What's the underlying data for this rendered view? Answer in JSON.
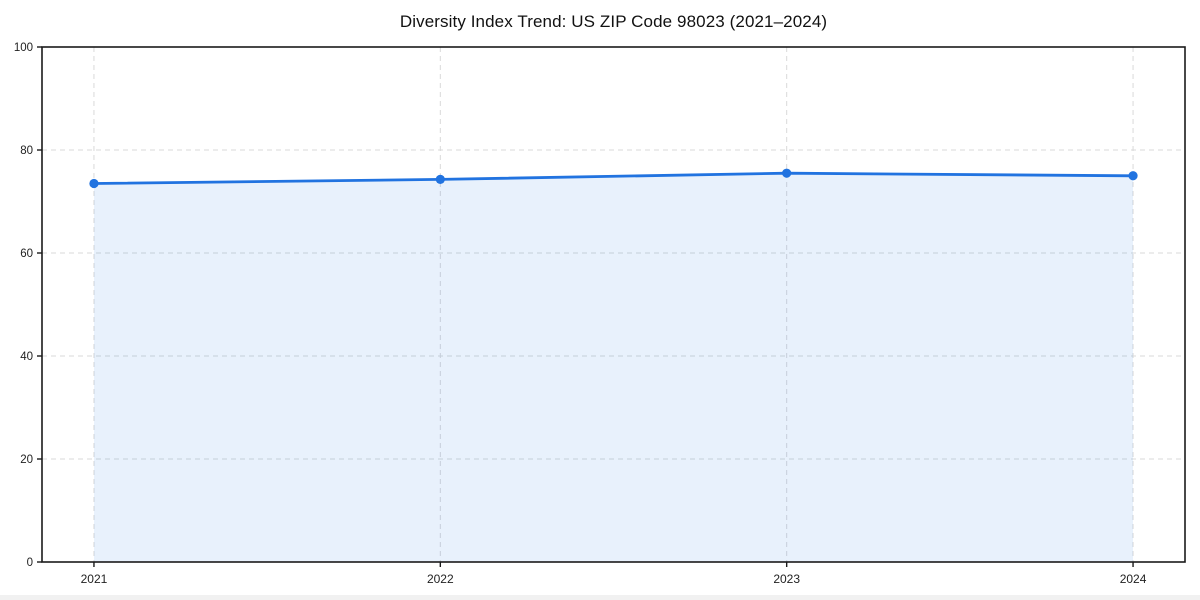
{
  "chart_data": {
    "type": "area",
    "title": "Diversity Index Trend: US ZIP Code 98023 (2021–2024)",
    "x": [
      2021,
      2022,
      2023,
      2024
    ],
    "x_tick_labels": [
      "2021",
      "2022",
      "2023",
      "2024"
    ],
    "series": [
      {
        "name": "Diversity Index",
        "values": [
          73.5,
          74.3,
          75.5,
          75.0
        ]
      }
    ],
    "xlabel": "",
    "ylabel": "",
    "ylim": [
      0,
      100
    ],
    "yticks": [
      0,
      20,
      40,
      60,
      80,
      100
    ],
    "x_margin_fraction": 0.05,
    "grid": true,
    "grid_style": "dashed",
    "legend_position": "none",
    "colors": {
      "line": "#2173e0",
      "marker": "#2173e0",
      "fill": "#2173e0",
      "fill_opacity": 0.1,
      "grid": "#d9d9d9",
      "spine": "#1a1a1a",
      "tick_label": "#222222",
      "background": "#ffffff"
    }
  }
}
